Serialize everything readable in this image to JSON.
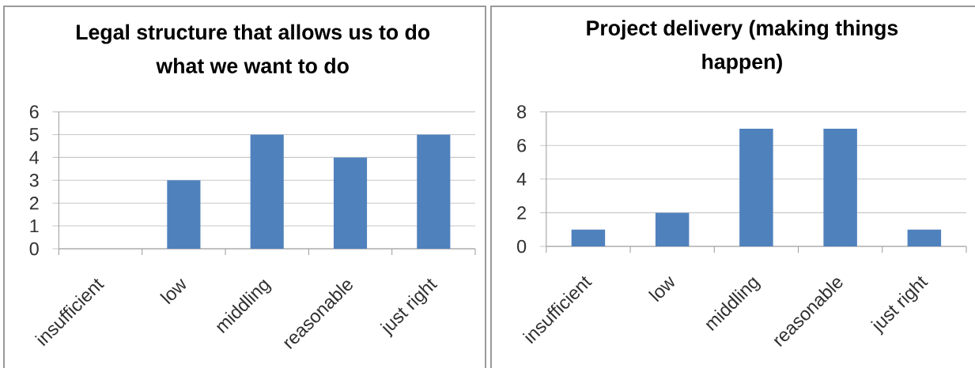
{
  "chart_data": [
    {
      "type": "bar",
      "title": "Legal structure that allows us to do what we want to do",
      "categories": [
        "insufficient",
        "low",
        "middling",
        "reasonable",
        "just right"
      ],
      "values": [
        0,
        3,
        5,
        4,
        5
      ],
      "color": "#4f81bd",
      "ylim": [
        0,
        6
      ],
      "yticks": [
        0,
        1,
        2,
        3,
        4,
        5,
        6
      ],
      "grid": "y"
    },
    {
      "type": "bar",
      "title": "Project delivery (making things happen)",
      "categories": [
        "insufficient",
        "low",
        "middling",
        "reasonable",
        "just right"
      ],
      "values": [
        1,
        2,
        7,
        7,
        1
      ],
      "color": "#4f81bd",
      "ylim": [
        0,
        8
      ],
      "yticks": [
        0,
        2,
        4,
        6,
        8
      ],
      "grid": "y"
    }
  ]
}
